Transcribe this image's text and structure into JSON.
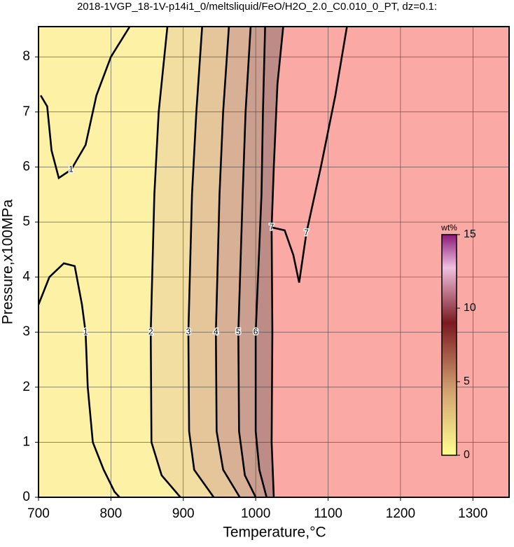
{
  "chart_data": {
    "type": "contour",
    "title": "2018-1VGP_18-1V-p14i1_0/meltsliquid/FeO/H2O_2.0_C0.010_0_PT, dz=0.1:",
    "x_label": "Temperature,°C",
    "y_label": "Pressure,x100MPa",
    "xlim": [
      700,
      1350
    ],
    "ylim": [
      0,
      8.55
    ],
    "xticks": [
      700,
      800,
      900,
      1000,
      1100,
      1200,
      1300
    ],
    "yticks": [
      0,
      1,
      2,
      3,
      4,
      5,
      6,
      7,
      8
    ],
    "grid": true,
    "background": "#fdf1a6",
    "contours": [
      {
        "level": 1,
        "x": [
          700,
          715,
          735,
          750,
          760,
          765,
          768,
          775,
          790,
          805,
          812
        ],
        "y": [
          3.5,
          4.0,
          4.25,
          4.2,
          3.5,
          3.0,
          2.0,
          1.0,
          0.5,
          0.1,
          0
        ]
      },
      {
        "level": 1,
        "x": [
          703,
          712,
          718,
          728,
          745,
          765,
          780,
          800,
          826
        ],
        "y": [
          7.3,
          7.1,
          6.3,
          5.8,
          5.95,
          6.4,
          7.3,
          8.0,
          8.55
        ]
      },
      {
        "level": 2,
        "fill": "#f2dea0",
        "x": [
          896,
          870,
          856,
          855,
          860,
          866,
          878
        ],
        "y": [
          0,
          0.4,
          1,
          3,
          5.5,
          7,
          8.55
        ]
      },
      {
        "level": 3,
        "fill": "#e5c69a",
        "x": [
          942,
          915,
          908,
          907,
          912,
          918,
          926
        ],
        "y": [
          0,
          0.5,
          1.2,
          3,
          5.5,
          7,
          8.55
        ]
      },
      {
        "level": 4,
        "fill": "#d8b095",
        "x": [
          978,
          955,
          946,
          945,
          950,
          955,
          963
        ],
        "y": [
          0,
          0.5,
          1.2,
          3,
          5.5,
          7,
          8.55
        ]
      },
      {
        "level": 5,
        "fill": "#cb9f8f",
        "x": [
          1000,
          985,
          977,
          976,
          982,
          986,
          993
        ],
        "y": [
          0,
          0.4,
          1.2,
          3,
          5.5,
          7,
          8.55
        ]
      },
      {
        "level": 6,
        "fill": "#bd8c86",
        "x": [
          1015,
          1005,
          1000,
          1000,
          1008,
          1010,
          1013
        ],
        "y": [
          0,
          0.5,
          1.2,
          3,
          5.5,
          7,
          8.55
        ]
      },
      {
        "level": 7,
        "fill": "#fba9a4",
        "x": [
          1025,
          1022,
          1023,
          1022,
          1025,
          1030,
          1038
        ],
        "y": [
          0,
          1,
          3,
          4.9,
          6,
          7.5,
          8.55
        ]
      },
      {
        "level": 7,
        "x": [
          1023,
          1040,
          1052,
          1060,
          1070,
          1090,
          1110,
          1126
        ],
        "y": [
          4.9,
          4.85,
          4.4,
          3.9,
          4.8,
          6.0,
          7.3,
          8.55
        ]
      }
    ],
    "colorbar": {
      "label": "wt%",
      "lim": [
        0,
        15
      ],
      "ticks": [
        0,
        5,
        10,
        15
      ]
    }
  }
}
